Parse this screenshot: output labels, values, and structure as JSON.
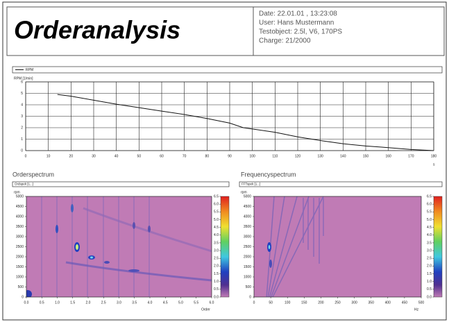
{
  "header": {
    "title": "Orderanalysis",
    "info": [
      "Date: 22.01.01 , 13:23:08",
      "User: Hans Mustermann",
      "Testobject: 2.5l, V6, 170PS",
      "Charge: 21/2000"
    ]
  },
  "chart_data": [
    {
      "type": "line",
      "ylabel": "RPM [1/min]",
      "xlabel": "s",
      "x": [
        14,
        20,
        30,
        40,
        50,
        60,
        70,
        80,
        90,
        96,
        110,
        120,
        131,
        140,
        150,
        157,
        170,
        180
      ],
      "series": [
        {
          "name": "RPM",
          "color": "#111111",
          "values": [
            4.9,
            4.75,
            4.4,
            4.05,
            3.75,
            3.45,
            3.15,
            2.8,
            2.4,
            2.0,
            1.6,
            1.2,
            0.85,
            0.6,
            0.4,
            0.3,
            0.1,
            0.0
          ]
        }
      ],
      "xlim": [
        0,
        180
      ],
      "ylim": [
        0,
        6
      ],
      "xticks": [
        0,
        10,
        20,
        30,
        40,
        50,
        60,
        70,
        80,
        90,
        100,
        110,
        120,
        130,
        140,
        150,
        160,
        170,
        180
      ],
      "yticks": [
        0,
        1,
        2,
        3,
        4,
        5,
        6
      ],
      "grid": true
    },
    {
      "type": "heatmap",
      "title": "Orderspectrum",
      "channel": "Ordspek [1...]",
      "ylabel": "rpm",
      "xlabel": "Order",
      "xlim": [
        0,
        6
      ],
      "ylim": [
        0,
        5000
      ],
      "xticks": [
        {
          "value": 0,
          "label": "0.0"
        },
        {
          "value": 0.5,
          "label": "0.5"
        },
        {
          "value": 1,
          "label": "1.0"
        },
        {
          "value": 1.5,
          "label": "1.5"
        },
        {
          "value": 2,
          "label": "2.0"
        },
        {
          "value": 2.5,
          "label": "2.5"
        },
        {
          "value": 3,
          "label": "3.0"
        },
        {
          "value": 3.5,
          "label": "3.5"
        },
        {
          "value": 4,
          "label": "4.0"
        },
        {
          "value": 4.5,
          "label": "4.5"
        },
        {
          "value": 5,
          "label": "5.0"
        },
        {
          "value": 5.5,
          "label": "5.5"
        },
        {
          "value": 6,
          "label": "6.0"
        }
      ],
      "yticks": [
        0,
        500,
        1000,
        1500,
        2000,
        2500,
        3000,
        3500,
        4000,
        4500,
        5000
      ],
      "clim": [
        0,
        6.5
      ],
      "cticks": [
        {
          "value": 0,
          "label": "0.0"
        },
        {
          "value": 0.5,
          "label": "0.5"
        },
        {
          "value": 1,
          "label": "1.0"
        },
        {
          "value": 1.5,
          "label": "1.5"
        },
        {
          "value": 2,
          "label": "2.0"
        },
        {
          "value": 2.5,
          "label": "2.5"
        },
        {
          "value": 3,
          "label": "3.0"
        },
        {
          "value": 3.5,
          "label": "3.5"
        },
        {
          "value": 4,
          "label": "4.0"
        },
        {
          "value": 4.5,
          "label": "4.5"
        },
        {
          "value": 5,
          "label": "5.0"
        },
        {
          "value": 5.5,
          "label": "5.5"
        },
        {
          "value": 6,
          "label": "6.0"
        },
        {
          "value": 6.5,
          "label": "6.5"
        }
      ]
    },
    {
      "type": "heatmap",
      "title": "Frequencyspectrum",
      "channel": "FFTspek [1...]",
      "ylabel": "rpm",
      "xlabel": "Hz",
      "xlim": [
        0,
        500
      ],
      "ylim": [
        0,
        5000
      ],
      "xticks": [
        0,
        50,
        100,
        150,
        200,
        250,
        300,
        350,
        400,
        450,
        500
      ],
      "yticks": [
        0,
        500,
        1000,
        1500,
        2000,
        2500,
        3000,
        3500,
        4000,
        4500,
        5000
      ],
      "clim": [
        0,
        6.5
      ],
      "cticks": [
        {
          "value": 0,
          "label": "0.0"
        },
        {
          "value": 0.5,
          "label": "0.5"
        },
        {
          "value": 1,
          "label": "1.0"
        },
        {
          "value": 1.5,
          "label": "1.5"
        },
        {
          "value": 2,
          "label": "2.0"
        },
        {
          "value": 2.5,
          "label": "2.5"
        },
        {
          "value": 3,
          "label": "3.0"
        },
        {
          "value": 3.5,
          "label": "3.5"
        },
        {
          "value": 4,
          "label": "4.0"
        },
        {
          "value": 4.5,
          "label": "4.5"
        },
        {
          "value": 5,
          "label": "5.0"
        },
        {
          "value": 5.5,
          "label": "5.5"
        },
        {
          "value": 6,
          "label": "6.0"
        },
        {
          "value": 6.5,
          "label": "6.5"
        }
      ]
    }
  ]
}
